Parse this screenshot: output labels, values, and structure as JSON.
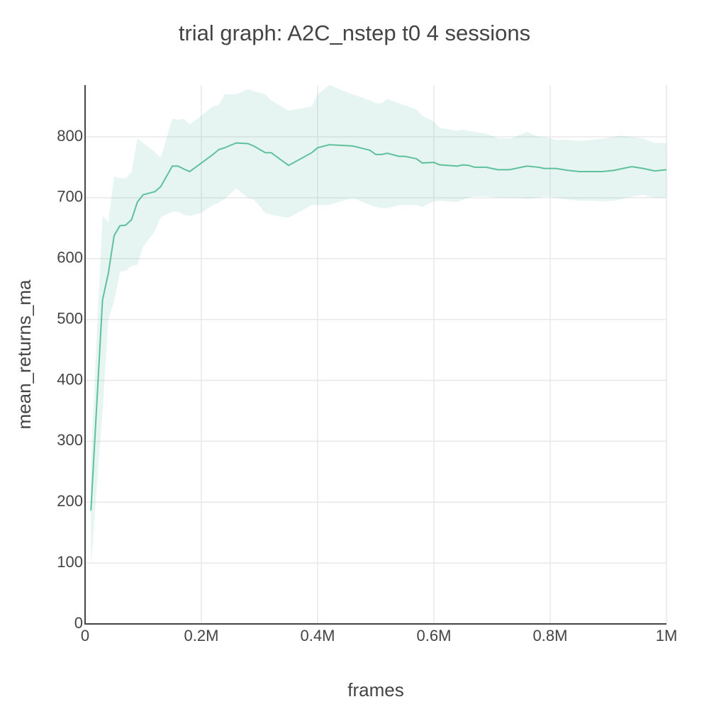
{
  "chart_data": {
    "type": "line",
    "title": "trial graph: A2C_nstep t0 4 sessions",
    "x_label": "frames",
    "y_label": "mean_returns_ma",
    "color": "#5fc19c",
    "band_color": "rgba(102,194,165,0.16)",
    "grid": true,
    "xlim": [
      0,
      1000000
    ],
    "ylim": [
      0,
      885
    ],
    "xticks": [
      0,
      {
        "value": 200000,
        "label": "0.2M"
      },
      {
        "value": 400000,
        "label": "0.4M"
      },
      {
        "value": 600000,
        "label": "0.6M"
      },
      {
        "value": 800000,
        "label": "0.8M"
      },
      {
        "value": 1000000,
        "label": "1M"
      }
    ],
    "yticks": [
      0,
      100,
      200,
      300,
      400,
      500,
      600,
      700,
      800
    ],
    "x": [
      10000,
      30000,
      40000,
      50000,
      60000,
      70000,
      80000,
      90000,
      100000,
      120000,
      130000,
      150000,
      160000,
      170000,
      180000,
      200000,
      220000,
      230000,
      240000,
      260000,
      280000,
      290000,
      310000,
      320000,
      350000,
      390000,
      400000,
      420000,
      460000,
      490000,
      500000,
      510000,
      520000,
      540000,
      550000,
      570000,
      580000,
      600000,
      610000,
      640000,
      650000,
      660000,
      670000,
      690000,
      710000,
      730000,
      740000,
      760000,
      780000,
      790000,
      810000,
      830000,
      850000,
      870000,
      890000,
      910000,
      920000,
      940000,
      960000,
      980000,
      1000000
    ],
    "values": [
      186,
      532,
      576,
      638,
      654,
      655,
      664,
      693,
      705,
      710,
      718,
      752,
      752,
      747,
      743,
      757,
      771,
      779,
      782,
      790,
      789,
      785,
      774,
      774,
      753,
      774,
      782,
      787,
      785,
      778,
      771,
      771,
      773,
      768,
      768,
      764,
      757,
      758,
      754,
      752,
      754,
      753,
      750,
      750,
      746,
      746,
      748,
      752,
      750,
      748,
      748,
      745,
      743,
      743,
      743,
      745,
      747,
      751,
      748,
      744,
      746
    ],
    "upper": [
      270,
      670,
      660,
      735,
      732,
      732,
      742,
      797,
      790,
      775,
      765,
      830,
      828,
      830,
      820,
      835,
      850,
      852,
      870,
      870,
      878,
      875,
      870,
      860,
      843,
      850,
      870,
      885,
      870,
      860,
      855,
      855,
      862,
      855,
      852,
      845,
      835,
      825,
      815,
      810,
      812,
      810,
      808,
      805,
      798,
      797,
      800,
      808,
      800,
      800,
      795,
      795,
      793,
      795,
      797,
      800,
      802,
      800,
      797,
      790,
      790
    ],
    "lower": [
      95,
      350,
      500,
      530,
      578,
      580,
      588,
      590,
      620,
      645,
      668,
      677,
      677,
      672,
      670,
      675,
      688,
      692,
      698,
      715,
      700,
      697,
      675,
      672,
      667,
      688,
      688,
      688,
      700,
      688,
      685,
      683,
      683,
      688,
      688,
      688,
      685,
      694,
      695,
      693,
      697,
      700,
      702,
      702,
      700,
      700,
      700,
      698,
      700,
      702,
      700,
      697,
      695,
      695,
      694,
      695,
      697,
      702,
      705,
      700,
      700
    ]
  }
}
